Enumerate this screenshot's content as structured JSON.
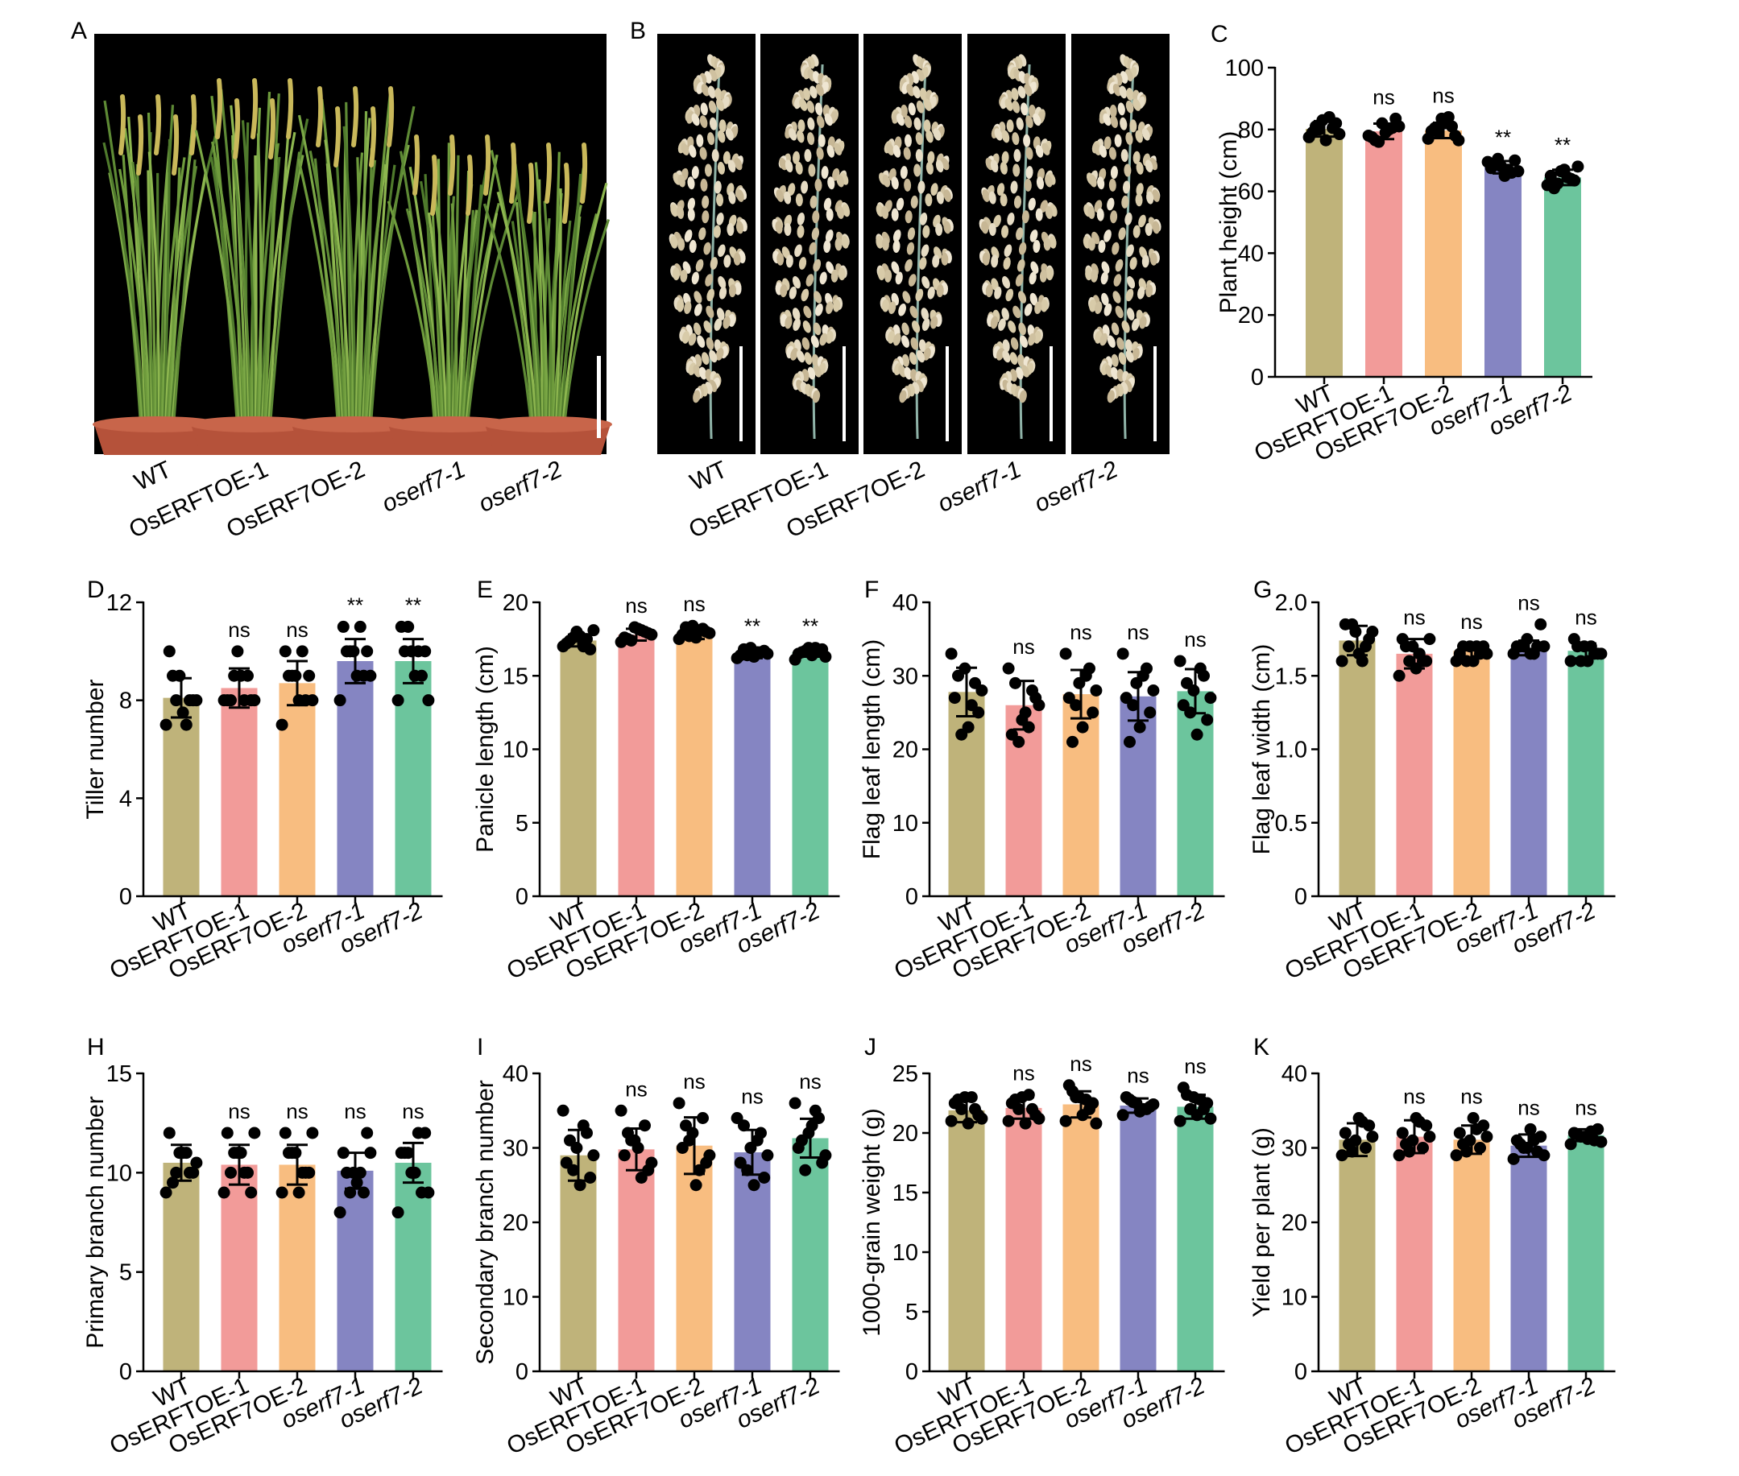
{
  "colors": {
    "WT": "#bfb37a",
    "OsERFTOE-1": "#f29b99",
    "OsERF7OE-2": "#f8bd80",
    "oserf7-1": "#8585c2",
    "oserf7-2": "#6cc59d",
    "background_photo": "#000000",
    "dot": "#000000"
  },
  "photo_panels": [
    {
      "letter": "A",
      "labels": [
        "WT",
        "OsERFTOE-1",
        "OsERF7OE-2",
        "oserf7-1",
        "oserf7-2"
      ],
      "italic": [
        false,
        false,
        false,
        true,
        true
      ],
      "content": "rice plants in pots"
    },
    {
      "letter": "B",
      "labels": [
        "WT",
        "OsERFTOE-1",
        "OsERF7OE-2",
        "oserf7-1",
        "oserf7-2"
      ],
      "italic": [
        false,
        false,
        false,
        true,
        true
      ],
      "content": "rice panicles"
    }
  ],
  "chart_data": [
    {
      "letter": "C",
      "type": "bar",
      "categories": [
        "WT",
        "OsERFTOE-1",
        "OsERF7OE-2",
        "oserf7-1",
        "oserf7-2"
      ],
      "italic": [
        false,
        false,
        false,
        true,
        true
      ],
      "ylabel": "Plant height (cm)",
      "ylim": [
        0,
        100
      ],
      "yticks": [
        0,
        20,
        40,
        60,
        80,
        100
      ],
      "values": [
        80.2,
        79.4,
        79.7,
        67.8,
        64.5
      ],
      "errors": [
        2.5,
        2.5,
        2.5,
        2.0,
        2.5
      ],
      "significance": [
        "",
        "ns",
        "ns",
        "**",
        "**"
      ],
      "points": [
        [
          77.5,
          80.5,
          83,
          79,
          82,
          76.5,
          81,
          78.5,
          84,
          80
        ],
        [
          78,
          80.5,
          82,
          77.5,
          83.5,
          79,
          76.5,
          81,
          80,
          76
        ],
        [
          77,
          81,
          83.5,
          79.5,
          78,
          82,
          80.5,
          76.5,
          84,
          79
        ],
        [
          69.5,
          66,
          68,
          67.5,
          70,
          65,
          68.5,
          66.5,
          67,
          70.5
        ],
        [
          62,
          64,
          66.5,
          65,
          63.5,
          67,
          61,
          68,
          64.5,
          62.5
        ]
      ]
    },
    {
      "letter": "D",
      "type": "bar",
      "categories": [
        "WT",
        "OsERFTOE-1",
        "OsERF7OE-2",
        "oserf7-1",
        "oserf7-2"
      ],
      "italic": [
        false,
        false,
        false,
        true,
        true
      ],
      "ylabel": "Tiller number",
      "ylim": [
        0,
        12
      ],
      "yticks": [
        0,
        4,
        8,
        12
      ],
      "values": [
        8.1,
        8.5,
        8.7,
        9.6,
        9.6
      ],
      "errors": [
        0.8,
        0.8,
        0.9,
        0.9,
        0.9
      ],
      "significance": [
        "",
        "ns",
        "ns",
        "**",
        "**"
      ],
      "points": [
        [
          7,
          8,
          9,
          10,
          8,
          7.5,
          9,
          8,
          7,
          8
        ],
        [
          8,
          9,
          10,
          8,
          8,
          9,
          8,
          8,
          8,
          9
        ],
        [
          7,
          8,
          9,
          10,
          9,
          8,
          9,
          8,
          10,
          9
        ],
        [
          8,
          9,
          10,
          11,
          10,
          9,
          10,
          9,
          11,
          10
        ],
        [
          8,
          9,
          10,
          11,
          10,
          9,
          10,
          8,
          10,
          11
        ]
      ]
    },
    {
      "letter": "E",
      "type": "bar",
      "categories": [
        "WT",
        "OsERFTOE-1",
        "OsERF7OE-2",
        "oserf7-1",
        "oserf7-2"
      ],
      "italic": [
        false,
        false,
        false,
        true,
        true
      ],
      "ylabel": "Panicle length (cm)",
      "ylim": [
        0,
        20
      ],
      "yticks": [
        0,
        5,
        10,
        15,
        20
      ],
      "values": [
        17.4,
        17.8,
        17.9,
        16.5,
        16.6
      ],
      "errors": [
        0.4,
        0.4,
        0.4,
        0.3,
        0.3
      ],
      "significance": [
        "",
        "ns",
        "ns",
        "**",
        "**"
      ],
      "points": [
        [
          17,
          17.5,
          18,
          17.2,
          16.8,
          17.7,
          17.4,
          18.1,
          17,
          17.6
        ],
        [
          17.3,
          18,
          18.3,
          17.6,
          17.9,
          18.2,
          17.5,
          17.8,
          18.1,
          17.4
        ],
        [
          17.5,
          18.2,
          18.4,
          17.8,
          18,
          17.6,
          18.3,
          17.9,
          18.1,
          17.7
        ],
        [
          16.2,
          16.6,
          16.9,
          16.4,
          16.7,
          16.3,
          16.8,
          16.5,
          16.6,
          16.4
        ],
        [
          16.1,
          16.7,
          16.9,
          16.5,
          16.8,
          16.4,
          16.6,
          16.3,
          16.9,
          16.7
        ]
      ]
    },
    {
      "letter": "F",
      "type": "bar",
      "categories": [
        "WT",
        "OsERFTOE-1",
        "OsERF7OE-2",
        "oserf7-1",
        "oserf7-2"
      ],
      "italic": [
        false,
        false,
        false,
        true,
        true
      ],
      "ylabel": "Flag leaf length (cm)",
      "ylim": [
        0,
        40
      ],
      "yticks": [
        0,
        10,
        20,
        30,
        40
      ],
      "values": [
        27.8,
        26.0,
        27.5,
        27.2,
        27.9
      ],
      "errors": [
        3.3,
        3.3,
        3.3,
        3.3,
        3.0
      ],
      "significance": [
        "",
        "ns",
        "ns",
        "ns",
        "ns"
      ],
      "points": [
        [
          33,
          29,
          31,
          27,
          25,
          23,
          30,
          28,
          26,
          22
        ],
        [
          31,
          28,
          24,
          22,
          27,
          25,
          29,
          26,
          23,
          21
        ],
        [
          33,
          31,
          29,
          27,
          25,
          23,
          21,
          28,
          30,
          26
        ],
        [
          33,
          31,
          29,
          27,
          25,
          23,
          21,
          28,
          30,
          26
        ],
        [
          32,
          30,
          28,
          26,
          24,
          22,
          29,
          27,
          31,
          25
        ]
      ]
    },
    {
      "letter": "G",
      "type": "bar",
      "categories": [
        "WT",
        "OsERFTOE-1",
        "OsERF7OE-2",
        "oserf7-1",
        "oserf7-2"
      ],
      "italic": [
        false,
        false,
        false,
        true,
        true
      ],
      "ylabel": "Flag leaf width (cm)",
      "ylim": [
        0,
        2.0
      ],
      "yticks": [
        0,
        0.5,
        1.0,
        1.5,
        2.0
      ],
      "ytickLabels": [
        "0",
        "0.5",
        "1.0",
        "1.5",
        "2.0"
      ],
      "values": [
        1.74,
        1.65,
        1.67,
        1.69,
        1.67
      ],
      "errors": [
        0.1,
        0.1,
        0.05,
        0.05,
        0.05
      ],
      "significance": [
        "",
        "ns",
        "ns",
        "ns",
        "ns"
      ],
      "points": [
        [
          1.6,
          1.7,
          1.8,
          1.85,
          1.75,
          1.65,
          1.7,
          1.8,
          1.6,
          1.85
        ],
        [
          1.5,
          1.6,
          1.7,
          1.75,
          1.6,
          1.55,
          1.7,
          1.75,
          1.65,
          1.6
        ],
        [
          1.6,
          1.65,
          1.7,
          1.65,
          1.7,
          1.6,
          1.7,
          1.65,
          1.7,
          1.6
        ],
        [
          1.65,
          1.7,
          1.75,
          1.7,
          1.85,
          1.65,
          1.7,
          1.7,
          1.65,
          1.7
        ],
        [
          1.6,
          1.65,
          1.7,
          1.75,
          1.65,
          1.6,
          1.7,
          1.65,
          1.7,
          1.6
        ]
      ]
    },
    {
      "letter": "H",
      "type": "bar",
      "categories": [
        "WT",
        "OsERFTOE-1",
        "OsERF7OE-2",
        "oserf7-1",
        "oserf7-2"
      ],
      "italic": [
        false,
        false,
        false,
        true,
        true
      ],
      "ylabel": "Primary branch number",
      "ylim": [
        0,
        15
      ],
      "yticks": [
        0,
        5,
        10,
        15
      ],
      "values": [
        10.5,
        10.4,
        10.4,
        10.1,
        10.5
      ],
      "errors": [
        0.9,
        1.0,
        1.0,
        0.9,
        1.0
      ],
      "significance": [
        "",
        "ns",
        "ns",
        "ns",
        "ns"
      ],
      "points": [
        [
          9,
          10,
          11,
          12,
          10,
          11,
          9.5,
          10.5,
          11,
          10
        ],
        [
          9,
          10,
          11,
          12,
          9,
          11,
          10,
          12,
          10,
          11
        ],
        [
          9,
          10,
          11,
          12,
          10,
          9,
          11,
          12,
          10,
          11
        ],
        [
          8,
          9,
          10,
          11,
          12,
          9.5,
          10,
          11,
          10,
          9
        ],
        [
          8,
          9,
          10,
          11,
          12,
          10,
          11,
          9,
          12,
          11
        ]
      ]
    },
    {
      "letter": "I",
      "type": "bar",
      "categories": [
        "WT",
        "OsERFTOE-1",
        "OsERF7OE-2",
        "oserf7-1",
        "oserf7-2"
      ],
      "italic": [
        false,
        false,
        false,
        true,
        true
      ],
      "ylabel": "Secondary branch number",
      "ylim": [
        0,
        40
      ],
      "yticks": [
        0,
        10,
        20,
        30,
        40
      ],
      "values": [
        29.0,
        29.8,
        30.3,
        29.4,
        31.3
      ],
      "errors": [
        3.4,
        2.8,
        3.8,
        3.0,
        2.6
      ],
      "significance": [
        "",
        "ns",
        "ns",
        "ns",
        "ns"
      ],
      "points": [
        [
          35,
          32,
          30,
          28,
          26,
          25,
          31,
          29,
          33,
          27
        ],
        [
          35,
          33,
          31,
          29,
          27,
          30,
          32,
          28,
          26,
          31
        ],
        [
          36,
          34,
          32,
          30,
          28,
          25,
          33,
          29,
          27,
          31
        ],
        [
          34,
          32,
          30,
          28,
          26,
          25,
          33,
          29,
          31,
          27
        ],
        [
          36,
          34,
          32,
          30,
          28,
          33,
          31,
          29,
          35,
          27
        ]
      ]
    },
    {
      "letter": "J",
      "type": "bar",
      "categories": [
        "WT",
        "OsERFTOE-1",
        "OsERF7OE-2",
        "oserf7-1",
        "oserf7-2"
      ],
      "italic": [
        false,
        false,
        false,
        true,
        true
      ],
      "ylabel": "1000-grain weight (g)",
      "ylim": [
        0,
        25
      ],
      "yticks": [
        0,
        5,
        10,
        15,
        20,
        25
      ],
      "values": [
        21.9,
        22.1,
        22.4,
        22.3,
        22.2
      ],
      "errors": [
        1.0,
        0.9,
        1.1,
        0.6,
        1.0
      ],
      "significance": [
        "",
        "ns",
        "ns",
        "ns",
        "ns"
      ],
      "points": [
        [
          21,
          22,
          23,
          22.5,
          21.5,
          20.8,
          22.8,
          21.2,
          23,
          22
        ],
        [
          21,
          22,
          23,
          22.5,
          21.5,
          20.8,
          22.8,
          21.2,
          23.2,
          22
        ],
        [
          21,
          22,
          23,
          24,
          22.5,
          21.5,
          23.5,
          20.8,
          22.8,
          23
        ],
        [
          21.5,
          22,
          22.5,
          23,
          22.2,
          21.8,
          22.8,
          22.4,
          22,
          22.6
        ],
        [
          21,
          22,
          23,
          23.8,
          22.5,
          21.5,
          23.2,
          21.2,
          22.8,
          22
        ]
      ]
    },
    {
      "letter": "K",
      "type": "bar",
      "categories": [
        "WT",
        "OsERFTOE-1",
        "OsERF7OE-2",
        "oserf7-1",
        "oserf7-2"
      ],
      "italic": [
        false,
        false,
        false,
        true,
        true
      ],
      "ylabel": "Yield per plant (g)",
      "ylim": [
        0,
        40
      ],
      "yticks": [
        0,
        10,
        20,
        30,
        40
      ],
      "values": [
        31.1,
        31.5,
        31.1,
        30.3,
        31.7
      ],
      "errors": [
        2.2,
        2.2,
        1.9,
        1.5,
        0.8
      ],
      "significance": [
        "",
        "ns",
        "ns",
        "ns",
        "ns"
      ],
      "points": [
        [
          29,
          30,
          31,
          32,
          33,
          34,
          30.5,
          31.5,
          33.5,
          29.5
        ],
        [
          29,
          30,
          31,
          32,
          33,
          34,
          30.5,
          31.5,
          33.5,
          29.5
        ],
        [
          29,
          30,
          31,
          32,
          33,
          34,
          30.5,
          31.5,
          32.5,
          29.5
        ],
        [
          28.5,
          29.5,
          30,
          31,
          31.5,
          32.5,
          30.5,
          29,
          31,
          30
        ],
        [
          30.5,
          31,
          31.5,
          32,
          32.5,
          31.2,
          31.8,
          30.8,
          32.2,
          31.5
        ]
      ]
    }
  ]
}
